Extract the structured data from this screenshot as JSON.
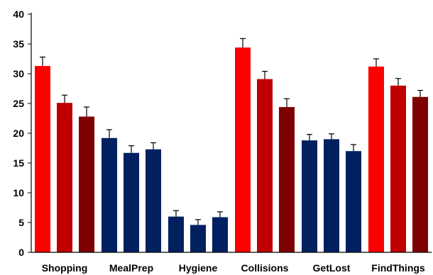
{
  "chart_data": {
    "type": "bar",
    "title": "",
    "xlabel": "",
    "ylabel": "",
    "ylim": [
      0,
      40
    ],
    "yticks": [
      0,
      5,
      10,
      15,
      20,
      25,
      30,
      35,
      40
    ],
    "grid": false,
    "legend": "none",
    "error_bars": true,
    "categories": [
      "Shopping",
      "MealPrep",
      "Hygiene",
      "Collisions",
      "GetLost",
      "FindThings"
    ],
    "bars": [
      [
        {
          "value": 31.3,
          "error": 1.5,
          "color": "#ff0000"
        },
        {
          "value": 25.1,
          "error": 1.3,
          "color": "#c00000"
        },
        {
          "value": 22.8,
          "error": 1.6,
          "color": "#7f0000"
        }
      ],
      [
        {
          "value": 19.2,
          "error": 1.4,
          "color": "#002060"
        },
        {
          "value": 16.7,
          "error": 1.2,
          "color": "#002060"
        },
        {
          "value": 17.3,
          "error": 1.1,
          "color": "#002060"
        }
      ],
      [
        {
          "value": 6.0,
          "error": 1.0,
          "color": "#002060"
        },
        {
          "value": 4.6,
          "error": 0.9,
          "color": "#002060"
        },
        {
          "value": 5.9,
          "error": 0.9,
          "color": "#002060"
        }
      ],
      [
        {
          "value": 34.4,
          "error": 1.5,
          "color": "#ff0000"
        },
        {
          "value": 29.1,
          "error": 1.3,
          "color": "#c00000"
        },
        {
          "value": 24.4,
          "error": 1.4,
          "color": "#7f0000"
        }
      ],
      [
        {
          "value": 18.8,
          "error": 1.0,
          "color": "#002060"
        },
        {
          "value": 19.0,
          "error": 0.9,
          "color": "#002060"
        },
        {
          "value": 17.0,
          "error": 1.1,
          "color": "#002060"
        }
      ],
      [
        {
          "value": 31.2,
          "error": 1.3,
          "color": "#ff0000"
        },
        {
          "value": 28.0,
          "error": 1.2,
          "color": "#c00000"
        },
        {
          "value": 26.1,
          "error": 1.1,
          "color": "#7f0000"
        }
      ]
    ]
  }
}
